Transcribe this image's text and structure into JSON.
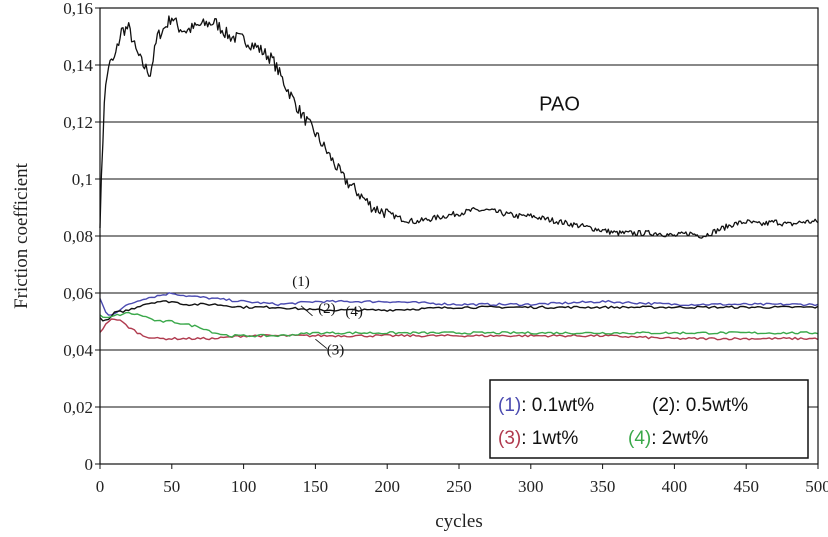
{
  "chart_data": {
    "type": "line",
    "title": "",
    "xlabel": "cycles",
    "ylabel": "Friction coefficient",
    "xlim": [
      0,
      500
    ],
    "ylim": [
      0,
      0.16
    ],
    "x_ticks": [
      "0",
      "50",
      "100",
      "150",
      "200",
      "250",
      "300",
      "350",
      "400",
      "450",
      "500"
    ],
    "y_ticks": [
      "0",
      "0,02",
      "0,04",
      "0,06",
      "0,08",
      "0,1",
      "0,12",
      "0,14",
      "0,16"
    ],
    "grid": "horizontal",
    "legend_position": "bottom-right",
    "series": [
      {
        "name": "PAO",
        "color": "#111111",
        "x": [
          0,
          3,
          6,
          10,
          15,
          20,
          25,
          30,
          35,
          40,
          45,
          50,
          55,
          60,
          70,
          80,
          90,
          100,
          110,
          120,
          130,
          140,
          150,
          160,
          170,
          180,
          190,
          200,
          210,
          220,
          230,
          240,
          250,
          260,
          270,
          280,
          290,
          300,
          310,
          320,
          330,
          340,
          350,
          360,
          370,
          380,
          390,
          400,
          410,
          420,
          430,
          440,
          450,
          460,
          470,
          480,
          490,
          500
        ],
        "y": [
          0.085,
          0.128,
          0.14,
          0.142,
          0.152,
          0.153,
          0.145,
          0.14,
          0.137,
          0.15,
          0.153,
          0.157,
          0.153,
          0.152,
          0.154,
          0.155,
          0.15,
          0.149,
          0.146,
          0.142,
          0.132,
          0.123,
          0.116,
          0.108,
          0.1,
          0.095,
          0.09,
          0.088,
          0.086,
          0.085,
          0.086,
          0.087,
          0.088,
          0.089,
          0.089,
          0.088,
          0.087,
          0.087,
          0.086,
          0.085,
          0.084,
          0.083,
          0.082,
          0.081,
          0.081,
          0.081,
          0.081,
          0.08,
          0.081,
          0.08,
          0.082,
          0.084,
          0.085,
          0.084,
          0.085,
          0.084,
          0.085,
          0.085
        ]
      },
      {
        "name": "(1)",
        "color": "#4a4ab0",
        "x": [
          0,
          5,
          10,
          20,
          30,
          40,
          50,
          60,
          80,
          100,
          125,
          150,
          200,
          250,
          300,
          350,
          400,
          450,
          470,
          500
        ],
        "y": [
          0.058,
          0.052,
          0.053,
          0.056,
          0.058,
          0.059,
          0.06,
          0.059,
          0.058,
          0.057,
          0.056,
          0.057,
          0.057,
          0.056,
          0.056,
          0.057,
          0.056,
          0.056,
          0.056,
          0.056
        ]
      },
      {
        "name": "(2)",
        "color": "#111111",
        "x": [
          0,
          5,
          10,
          20,
          30,
          40,
          50,
          60,
          80,
          100,
          125,
          150,
          200,
          250,
          300,
          350,
          400,
          450,
          500
        ],
        "y": [
          0.051,
          0.05,
          0.053,
          0.054,
          0.056,
          0.057,
          0.057,
          0.056,
          0.056,
          0.055,
          0.055,
          0.054,
          0.054,
          0.055,
          0.055,
          0.055,
          0.055,
          0.055,
          0.055
        ]
      },
      {
        "name": "(3)",
        "color": "#b03a4e",
        "x": [
          0,
          5,
          10,
          15,
          20,
          30,
          40,
          50,
          60,
          80,
          100,
          125,
          150,
          200,
          250,
          300,
          350,
          400,
          450,
          500
        ],
        "y": [
          0.046,
          0.05,
          0.051,
          0.05,
          0.048,
          0.045,
          0.044,
          0.044,
          0.044,
          0.044,
          0.045,
          0.045,
          0.045,
          0.045,
          0.045,
          0.045,
          0.045,
          0.044,
          0.044,
          0.044
        ]
      },
      {
        "name": "(4)",
        "color": "#3aa84a",
        "x": [
          0,
          5,
          10,
          20,
          30,
          40,
          50,
          60,
          70,
          80,
          90,
          100,
          125,
          150,
          200,
          250,
          300,
          350,
          400,
          450,
          500
        ],
        "y": [
          0.052,
          0.051,
          0.052,
          0.053,
          0.052,
          0.05,
          0.05,
          0.049,
          0.048,
          0.046,
          0.045,
          0.045,
          0.045,
          0.046,
          0.046,
          0.046,
          0.046,
          0.046,
          0.046,
          0.046,
          0.046
        ]
      }
    ],
    "annotations": [
      {
        "text": "PAO",
        "x": 320,
        "y": 0.124
      },
      {
        "text": "(1)",
        "x": 140,
        "y": 0.0625
      },
      {
        "text": "(2)",
        "x": 158,
        "y": 0.053
      },
      {
        "text": "(4)",
        "x": 177,
        "y": 0.052
      },
      {
        "text": "(3)",
        "x": 164,
        "y": 0.0385
      }
    ],
    "legend": {
      "rows": [
        [
          {
            "label": "(1)",
            "color": "#4a4ab0",
            "text": ": 0.1wt%"
          },
          {
            "label": "(2)",
            "color": "#111111",
            "text": ": 0.5wt%"
          }
        ],
        [
          {
            "label": "(3)",
            "color": "#b03a4e",
            "text": ": 1wt%"
          },
          {
            "label": "(4)",
            "color": "#3aa84a",
            "text": ": 2wt%"
          }
        ]
      ]
    }
  }
}
